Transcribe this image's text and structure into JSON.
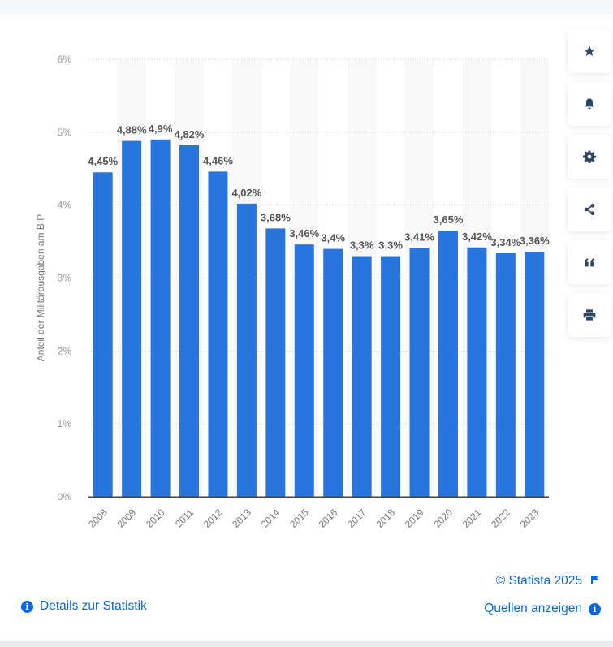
{
  "chart_data": {
    "type": "bar",
    "title": "",
    "xlabel": "",
    "ylabel": "Anteil der Militärausgaben am BIP",
    "categories": [
      "2008",
      "2009",
      "2010",
      "2011",
      "2012",
      "2013",
      "2014",
      "2015",
      "2016",
      "2017",
      "2018",
      "2019",
      "2020",
      "2021",
      "2022",
      "2023"
    ],
    "values": [
      4.45,
      4.88,
      4.9,
      4.82,
      4.46,
      4.02,
      3.68,
      3.46,
      3.4,
      3.3,
      3.3,
      3.41,
      3.65,
      3.42,
      3.34,
      3.36
    ],
    "data_labels": [
      "4,45%",
      "4,88%",
      "4,9%",
      "4,82%",
      "4,46%",
      "4,02%",
      "3,68%",
      "3,46%",
      "3,4%",
      "3,3%",
      "3,3%",
      "3,41%",
      "3,65%",
      "3,42%",
      "3,34%",
      "3,36%"
    ],
    "ylim": [
      0,
      6
    ],
    "yticks": [
      0,
      1,
      2,
      3,
      4,
      5,
      6
    ],
    "ytick_labels": [
      "0%",
      "1%",
      "2%",
      "3%",
      "4%",
      "5%",
      "6%"
    ],
    "grid": true,
    "bar_color": "#2876dd",
    "band_color": "#f8f8f8"
  },
  "toolbar": {
    "buttons": [
      {
        "name": "favorite",
        "icon": "star-icon"
      },
      {
        "name": "notification",
        "icon": "bell-icon"
      },
      {
        "name": "settings",
        "icon": "gear-icon"
      },
      {
        "name": "share",
        "icon": "share-icon"
      },
      {
        "name": "cite",
        "icon": "quote-icon"
      },
      {
        "name": "print",
        "icon": "printer-icon"
      }
    ],
    "icon_color": "#2f4766"
  },
  "footer": {
    "copyright": "© Statista 2025",
    "details_label": "Details zur Statistik",
    "sources_label": "Quellen anzeigen",
    "link_color": "#0666e5"
  }
}
